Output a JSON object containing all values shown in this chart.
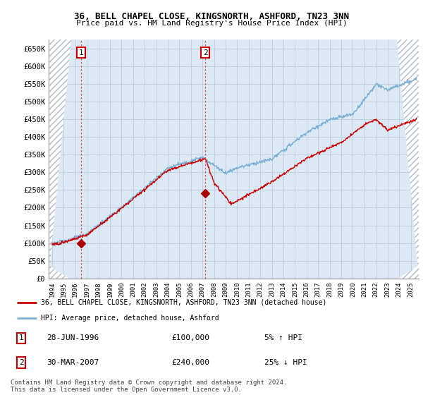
{
  "title1": "36, BELL CHAPEL CLOSE, KINGSNORTH, ASHFORD, TN23 3NN",
  "title2": "Price paid vs. HM Land Registry's House Price Index (HPI)",
  "ylabel_values": [
    "£650K",
    "£600K",
    "£550K",
    "£500K",
    "£450K",
    "£400K",
    "£350K",
    "£300K",
    "£250K",
    "£200K",
    "£150K",
    "£100K",
    "£50K",
    "£0"
  ],
  "yticks": [
    650000,
    600000,
    550000,
    500000,
    450000,
    400000,
    350000,
    300000,
    250000,
    200000,
    150000,
    100000,
    50000,
    0
  ],
  "ylim": [
    0,
    675000
  ],
  "xlim_start": 1993.7,
  "xlim_end": 2025.7,
  "xticks": [
    1994,
    1995,
    1996,
    1997,
    1998,
    1999,
    2000,
    2001,
    2002,
    2003,
    2004,
    2005,
    2006,
    2007,
    2008,
    2009,
    2010,
    2011,
    2012,
    2013,
    2014,
    2015,
    2016,
    2017,
    2018,
    2019,
    2020,
    2021,
    2022,
    2023,
    2024,
    2025
  ],
  "sale1_x": 1996.49,
  "sale1_y": 100000,
  "sale2_x": 2007.24,
  "sale2_y": 240000,
  "annotation1_label": "1",
  "annotation2_label": "2",
  "legend_line1": "36, BELL CHAPEL CLOSE, KINGSNORTH, ASHFORD, TN23 3NN (detached house)",
  "legend_line2": "HPI: Average price, detached house, Ashford",
  "table_row1": [
    "1",
    "28-JUN-1996",
    "£100,000",
    "5% ↑ HPI"
  ],
  "table_row2": [
    "2",
    "30-MAR-2007",
    "£240,000",
    "25% ↓ HPI"
  ],
  "footer": "Contains HM Land Registry data © Crown copyright and database right 2024.\nThis data is licensed under the Open Government Licence v3.0.",
  "hpi_color": "#7bafd4",
  "price_color": "#cc0000",
  "dashed_line_color": "#e05050",
  "marker_color": "#aa0000",
  "chart_bg_color": "#dce9f5",
  "grid_color": "#b8cfe0",
  "hatch_color": "#b0b8c8"
}
